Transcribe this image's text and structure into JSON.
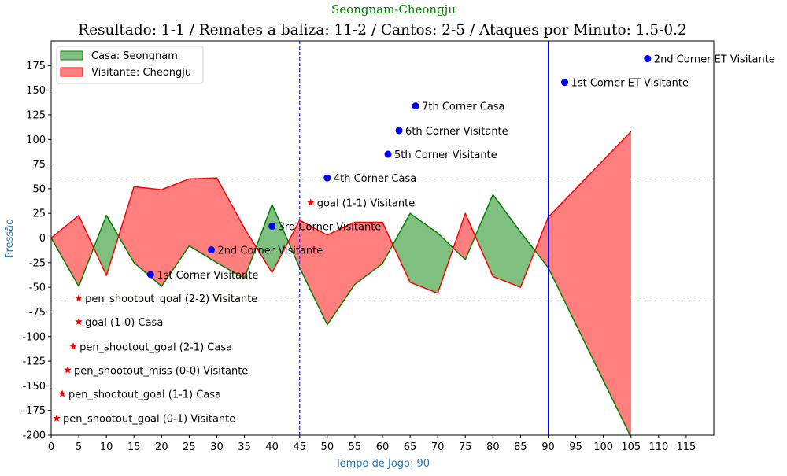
{
  "chart_data": {
    "type": "area",
    "supertitle": "Seongnam-Cheongju",
    "title": "Resultado: 1-1 / Remates a baliza: 11-2 / Cantos: 2-5 / Ataques por Minuto: 1.5-0.2",
    "xlabel": "Tempo de Jogo: 90",
    "ylabel": "Pressão",
    "xlim": [
      0,
      120
    ],
    "ylim": [
      -200,
      200
    ],
    "x_ticks": [
      0,
      5,
      10,
      15,
      20,
      25,
      30,
      35,
      40,
      45,
      50,
      55,
      60,
      65,
      70,
      75,
      80,
      85,
      90,
      95,
      100,
      105,
      110,
      115
    ],
    "y_ticks": [
      -200,
      -175,
      -150,
      -125,
      -100,
      -75,
      -50,
      -25,
      0,
      25,
      50,
      75,
      100,
      125,
      150,
      175
    ],
    "grid": false,
    "legend_position": "top-left",
    "colors": {
      "home": "#008000",
      "home_fill": "#7fbf7f",
      "away": "#ff0000",
      "away_fill": "#ff7f7f",
      "marker": "#0000ff",
      "threshold": "#bfbf00"
    },
    "legend": [
      {
        "label": "Casa: Seongnam",
        "color": "#7fbf7f",
        "edge": "#008000"
      },
      {
        "label": "Visitante: Cheongju",
        "color": "#ff7f7f",
        "edge": "#ff0000"
      }
    ],
    "series": [
      {
        "name": "Casa: Seongnam",
        "x": [
          0,
          5,
          10,
          15,
          20,
          25,
          30,
          35,
          40,
          45,
          50,
          55,
          60,
          65,
          70,
          75,
          80,
          85,
          90,
          105
        ],
        "values": [
          0,
          -49,
          23,
          -25,
          -49,
          -8,
          -25,
          -41,
          34,
          -30,
          -88,
          -47,
          -26,
          25,
          5,
          -22,
          44,
          6,
          -30,
          -202
        ]
      },
      {
        "name": "Visitante: Cheongju",
        "x": [
          0,
          5,
          10,
          15,
          20,
          25,
          30,
          35,
          40,
          45,
          50,
          55,
          60,
          65,
          70,
          75,
          80,
          85,
          90,
          105
        ],
        "values": [
          0,
          23,
          -38,
          52,
          49,
          60,
          61,
          10,
          -35,
          18,
          3,
          16,
          16,
          -45,
          -56,
          25,
          -39,
          -50,
          21,
          108
        ]
      }
    ],
    "reference_lines": [
      {
        "axis": "y",
        "value": 60,
        "style": "dashed",
        "color": "#bfbf00"
      },
      {
        "axis": "y",
        "value": -60,
        "style": "dashed",
        "color": "#bfbf00"
      },
      {
        "axis": "x",
        "value": 45,
        "style": "dashed",
        "color": "#0000ff"
      },
      {
        "axis": "x",
        "value": 90,
        "style": "solid",
        "color": "#0000ff"
      }
    ],
    "corner_events": [
      {
        "x": 18,
        "y": -37,
        "label": "1st Corner Visitante"
      },
      {
        "x": 29,
        "y": -12,
        "label": "2nd Corner Visitante"
      },
      {
        "x": 40,
        "y": 12,
        "label": "3rd Corner Visitante"
      },
      {
        "x": 50,
        "y": 61,
        "label": "4th Corner Casa"
      },
      {
        "x": 61,
        "y": 85,
        "label": "5th Corner Visitante"
      },
      {
        "x": 63,
        "y": 109,
        "label": "6th Corner Visitante"
      },
      {
        "x": 66,
        "y": 134,
        "label": "7th Corner Casa"
      },
      {
        "x": 93,
        "y": 158,
        "label": "1st Corner ET Visitante"
      },
      {
        "x": 108,
        "y": 182,
        "label": "2nd Corner ET Visitante"
      }
    ],
    "goal_events": [
      {
        "x": 47,
        "y": 36,
        "label": "goal (1-1) Visitante"
      },
      {
        "x": 5,
        "y": -61,
        "label": "pen_shootout_goal (2-2) Visitante"
      },
      {
        "x": 5,
        "y": -85,
        "label": "goal (1-0) Casa"
      },
      {
        "x": 4,
        "y": -110,
        "label": "pen_shootout_goal (2-1) Casa"
      },
      {
        "x": 3,
        "y": -134,
        "label": "pen_shootout_miss (0-0) Visitante"
      },
      {
        "x": 2,
        "y": -158,
        "label": "pen_shootout_goal (1-1) Casa"
      },
      {
        "x": 1,
        "y": -183,
        "label": "pen_shootout_goal (0-1) Visitante"
      }
    ]
  }
}
